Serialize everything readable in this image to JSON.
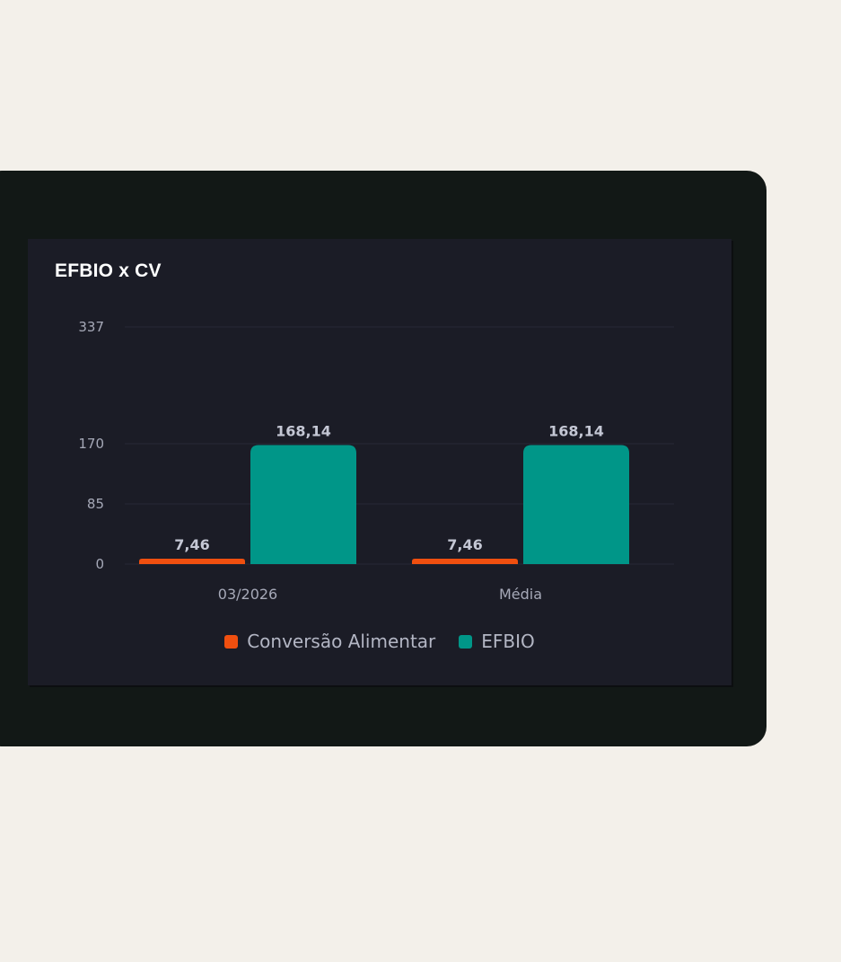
{
  "chart_data": {
    "type": "bar",
    "title": "EFBIO x CV",
    "categories": [
      "03/2026",
      "Média"
    ],
    "series": [
      {
        "name": "Conversão Alimentar",
        "color": "#f04f0f",
        "values": [
          7.46,
          7.46
        ],
        "labels": [
          "7,46",
          "7,46"
        ]
      },
      {
        "name": "EFBIO",
        "color": "#009688",
        "values": [
          168.14,
          168.14
        ],
        "labels": [
          "168,14",
          "168,14"
        ]
      }
    ],
    "y_ticks": [
      0,
      85,
      170,
      337
    ],
    "y_tick_labels": [
      "0",
      "85",
      "170",
      "337"
    ],
    "ylim": [
      0,
      337
    ],
    "grid": true,
    "legend_position": "bottom"
  }
}
